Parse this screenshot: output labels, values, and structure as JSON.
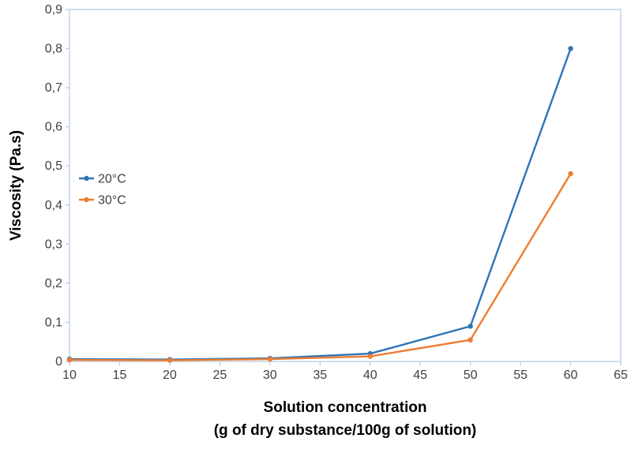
{
  "chart_data": {
    "type": "line",
    "x": [
      10,
      20,
      30,
      40,
      50,
      60
    ],
    "series": [
      {
        "name": "20°C",
        "color": "#2E75B6",
        "values": [
          0.006,
          0.005,
          0.008,
          0.02,
          0.09,
          0.8
        ]
      },
      {
        "name": "30°C",
        "color": "#ED7D31",
        "values": [
          0.004,
          0.003,
          0.006,
          0.013,
          0.055,
          0.48
        ]
      }
    ],
    "title": "",
    "xlabel_line1": "Solution concentration",
    "xlabel_line2": "(g of dry substance/100g of solution)",
    "ylabel": "Viscosity (Pa.s)",
    "xlim": [
      10,
      65
    ],
    "ylim": [
      0,
      0.9
    ],
    "xtick_step": 5,
    "ytick_step": 0.1,
    "decimal_separator": ",",
    "grid": false,
    "legend_position": "middle-left",
    "frame_color": "#B9CDE5",
    "tick_text_color": "#404040",
    "axis_title_color": "#000000"
  }
}
